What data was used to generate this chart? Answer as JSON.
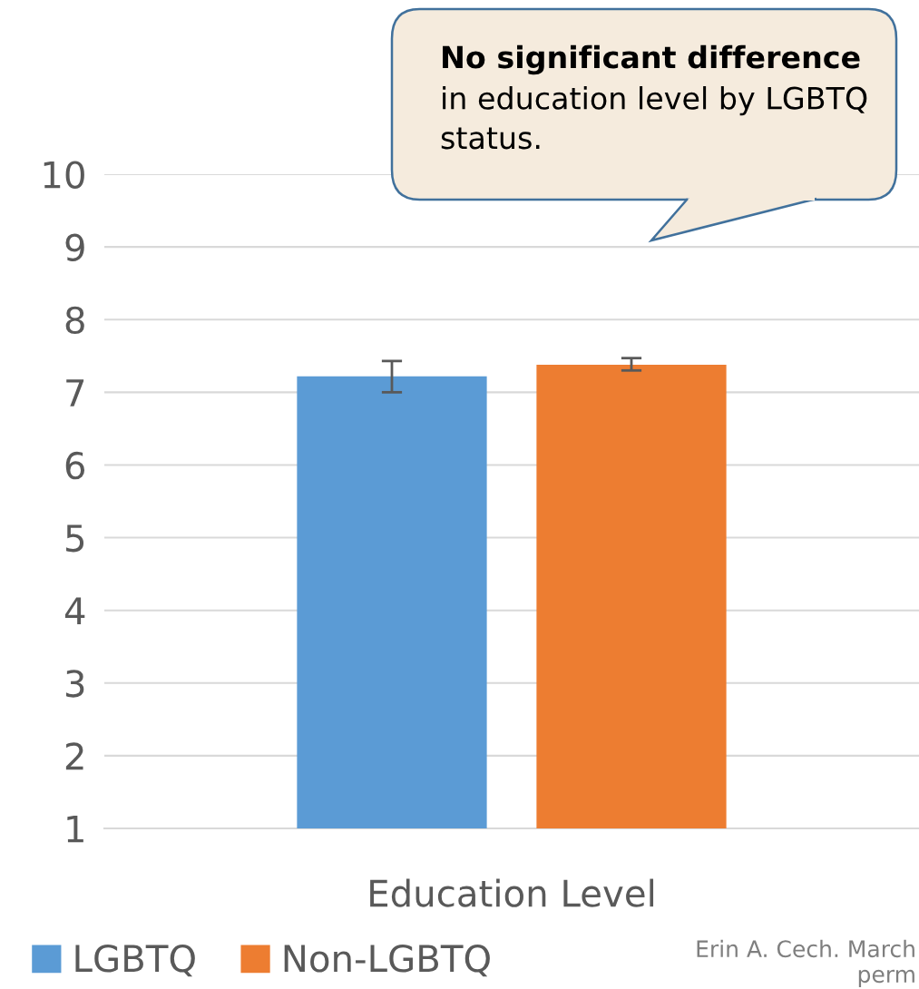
{
  "chart_data": {
    "type": "bar",
    "categories": [
      "Education Level"
    ],
    "series": [
      {
        "name": "LGBTQ",
        "color": "#5b9bd5",
        "values": [
          7.22
        ],
        "errors": [
          [
            7.0,
            7.43
          ]
        ]
      },
      {
        "name": "Non-LGBTQ",
        "color": "#ed7d31",
        "values": [
          7.38
        ],
        "errors": [
          [
            7.3,
            7.47
          ]
        ]
      }
    ],
    "ylim": [
      1,
      10
    ],
    "yticks": [
      1,
      2,
      3,
      4,
      5,
      6,
      7,
      8,
      9,
      10
    ],
    "grid": "y",
    "legend": "bottom",
    "annotations": [
      "No significant difference",
      "in education level by LGBTQ status.",
      "Erin A. Cech. March\nperm"
    ]
  }
}
